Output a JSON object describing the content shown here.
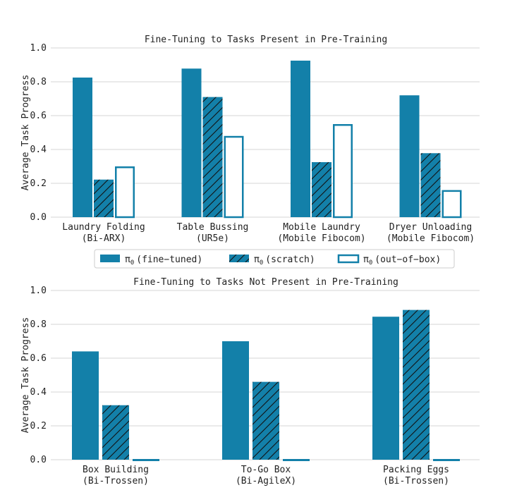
{
  "colors": {
    "bar": "#1380a9",
    "grid": "#d4d4d4",
    "hatch": "#111111",
    "outline": "#1380a9"
  },
  "legend": {
    "items": [
      {
        "symbol": "π",
        "sub": "0",
        "label": "(fine−tuned)",
        "style": "solid"
      },
      {
        "symbol": "π",
        "sub": "0",
        "label": "(scratch)",
        "style": "hatched"
      },
      {
        "symbol": "π",
        "sub": "0",
        "label": "(out−of−box)",
        "style": "outline"
      }
    ]
  },
  "chart_data": [
    {
      "type": "bar",
      "title": "Fine-Tuning to Tasks Present in Pre-Training",
      "ylabel": "Average Task Progress",
      "ylim": [
        0,
        1.0
      ],
      "yticks": [
        "0.0",
        "0.2",
        "0.4",
        "0.6",
        "0.8",
        "1.0"
      ],
      "grid": true,
      "categories": [
        [
          "Laundry Folding",
          "(Bi-ARX)"
        ],
        [
          "Table Bussing",
          "(UR5e)"
        ],
        [
          "Mobile Laundry",
          "(Mobile Fibocom)"
        ],
        [
          "Dryer Unloading",
          "(Mobile Fibocom)"
        ]
      ],
      "series": [
        {
          "name": "π0 (fine−tuned)",
          "style": "solid",
          "values": [
            0.825,
            0.878,
            0.925,
            0.72
          ]
        },
        {
          "name": "π0 (scratch)",
          "style": "hatched",
          "values": [
            0.222,
            0.71,
            0.325,
            0.378
          ]
        },
        {
          "name": "π0 (out−of−box)",
          "style": "outline",
          "values": [
            0.3,
            0.48,
            0.55,
            0.16
          ]
        }
      ]
    },
    {
      "type": "bar",
      "title": "Fine-Tuning to Tasks Not Present in Pre-Training",
      "ylabel": "Average Task Progress",
      "ylim": [
        0,
        1.0
      ],
      "yticks": [
        "0.0",
        "0.2",
        "0.4",
        "0.6",
        "0.8",
        "1.0"
      ],
      "grid": true,
      "categories": [
        [
          "Box Building",
          "(Bi-Trossen)"
        ],
        [
          "To-Go Box",
          "(Bi-AgileX)"
        ],
        [
          "Packing Eggs",
          "(Bi-Trossen)"
        ]
      ],
      "series": [
        {
          "name": "π0 (fine−tuned)",
          "style": "solid",
          "values": [
            0.64,
            0.7,
            0.845
          ]
        },
        {
          "name": "π0 (scratch)",
          "style": "hatched",
          "values": [
            0.322,
            0.46,
            0.885
          ]
        },
        {
          "name": "π0 (out−of−box)",
          "style": "outline",
          "values": [
            0.0,
            0.0,
            0.0
          ]
        }
      ]
    }
  ]
}
